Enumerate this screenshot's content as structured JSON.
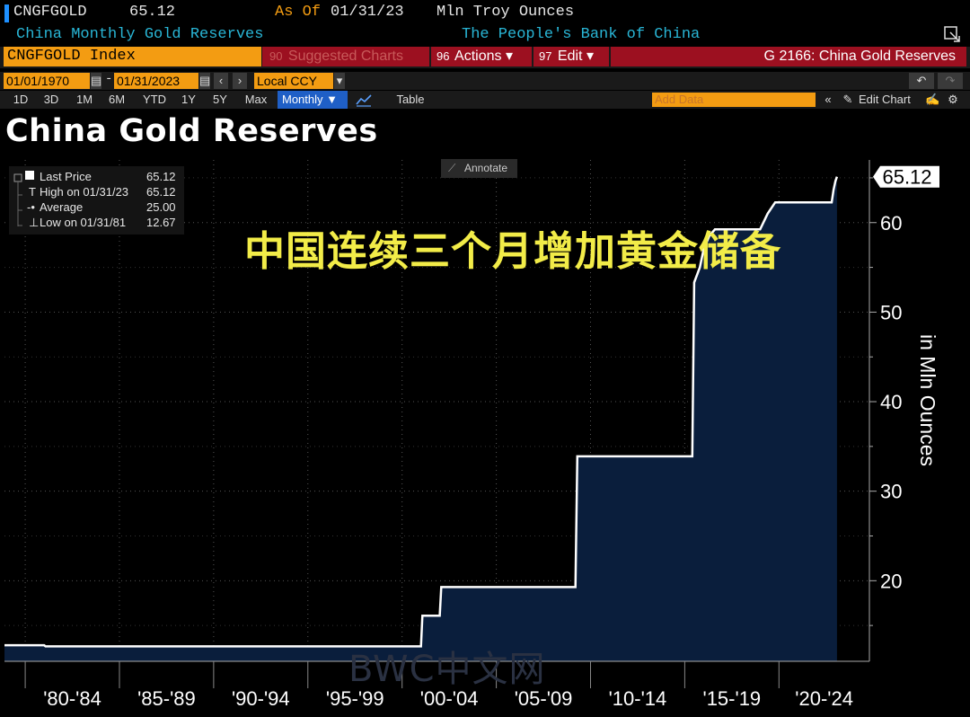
{
  "header": {
    "ticker": "CNGFGOLD",
    "last_value": "65.12",
    "as_of_label": "As Of",
    "as_of_date": "01/31/23",
    "units": "Mln Troy Ounces",
    "description": "China Monthly Gold Reserves",
    "source": "The People's Bank of China"
  },
  "toolbar": {
    "security": "CNGFGOLD Index",
    "suggested_num": "90",
    "suggested_label": "Suggested Charts",
    "actions_num": "96",
    "actions_label": "Actions ▾",
    "edit_num": "97",
    "edit_label": "Edit ▾",
    "function_label": "G 2166: China Gold Reserves",
    "start_date": "01/01/1970",
    "end_date": "01/31/2023",
    "date_sep": "-",
    "currency": "Local CCY",
    "periods": [
      "1D",
      "3D",
      "1M",
      "6M",
      "YTD",
      "1Y",
      "5Y",
      "Max"
    ],
    "frequency": "Monthly ▼",
    "table_label": "Table",
    "add_data_placeholder": "Add Data",
    "edit_chart_label": "Edit Chart"
  },
  "legend": {
    "last_price_label": "Last Price",
    "last_price_value": "65.12",
    "high_label": "High on 01/31/23",
    "high_value": "65.12",
    "average_label": "Average",
    "average_value": "25.00",
    "low_label": "Low on 01/31/81",
    "low_value": "12.67"
  },
  "annotate_label": "Annotate",
  "overlay_text": "中国连续三个月增加黄金储备",
  "watermark_text": "BWC中文网",
  "colors": {
    "area_fill": "#0a1e3c",
    "line": "#ffffff",
    "accent_orange": "#f39c12",
    "accent_red": "#9c1020",
    "overlay_yellow": "#f2ec48"
  },
  "chart_data": {
    "type": "area",
    "title": "China Gold Reserves",
    "ylabel": "in Mln Ounces",
    "ylim": [
      11,
      67
    ],
    "yticks": [
      20,
      30,
      40,
      50,
      60
    ],
    "last_value_label": "65.12",
    "x_range": [
      1978.9,
      2024.8
    ],
    "x_groups": [
      {
        "label": "'80-'84",
        "start": 1980,
        "end": 1985
      },
      {
        "label": "'85-'89",
        "start": 1985,
        "end": 1990
      },
      {
        "label": "'90-'94",
        "start": 1990,
        "end": 1995
      },
      {
        "label": "'95-'99",
        "start": 1995,
        "end": 2000
      },
      {
        "label": "'00-'04",
        "start": 2000,
        "end": 2005
      },
      {
        "label": "'05-'09",
        "start": 2005,
        "end": 2010
      },
      {
        "label": "'10-'14",
        "start": 2010,
        "end": 2015
      },
      {
        "label": "'15-'19",
        "start": 2015,
        "end": 2020
      },
      {
        "label": "'20-'24",
        "start": 2020,
        "end": 2025
      }
    ],
    "series": [
      {
        "points": [
          [
            1978.9,
            12.8
          ],
          [
            1981.0,
            12.8
          ],
          [
            1981.08,
            12.67
          ],
          [
            2001.0,
            12.67
          ],
          [
            2001.08,
            16.1
          ],
          [
            2002.0,
            16.1
          ],
          [
            2002.08,
            19.29
          ],
          [
            2009.2,
            19.29
          ],
          [
            2009.3,
            33.89
          ],
          [
            2015.4,
            33.89
          ],
          [
            2015.5,
            53.31
          ],
          [
            2015.8,
            55.0
          ],
          [
            2016.0,
            57.0
          ],
          [
            2016.3,
            58.5
          ],
          [
            2016.6,
            59.24
          ],
          [
            2019.0,
            59.24
          ],
          [
            2019.4,
            61.0
          ],
          [
            2019.8,
            62.26
          ],
          [
            2022.8,
            62.26
          ],
          [
            2022.9,
            63.67
          ],
          [
            2023.0,
            64.64
          ],
          [
            2023.08,
            65.12
          ]
        ]
      }
    ]
  }
}
